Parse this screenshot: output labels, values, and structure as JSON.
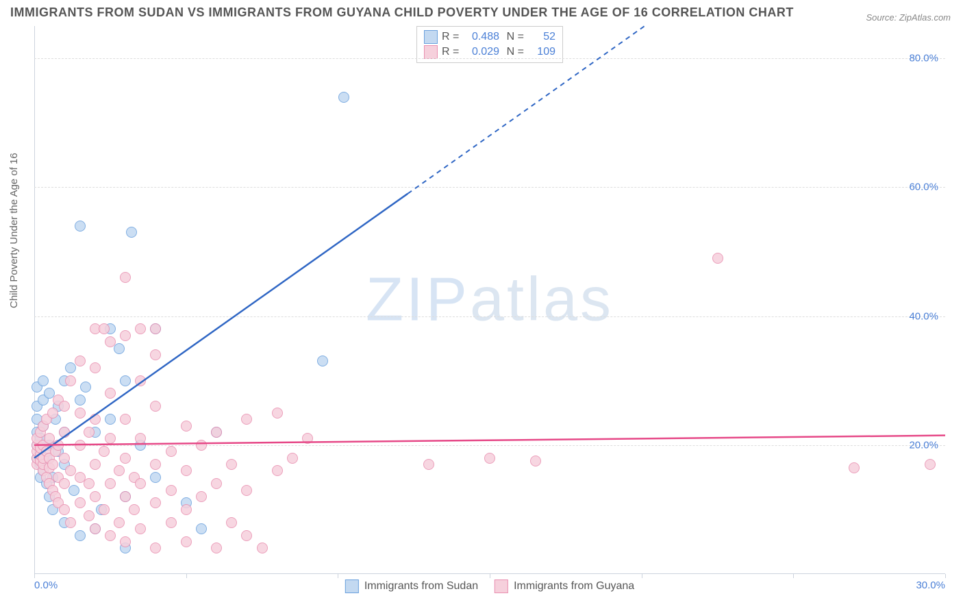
{
  "title": "IMMIGRANTS FROM SUDAN VS IMMIGRANTS FROM GUYANA CHILD POVERTY UNDER THE AGE OF 16 CORRELATION CHART",
  "source": "Source: ZipAtlas.com",
  "ylabel": "Child Poverty Under the Age of 16",
  "watermark": "ZIPatlas",
  "chart": {
    "type": "scatter",
    "xlim": [
      0,
      30
    ],
    "ylim": [
      0,
      85
    ],
    "yticks": [
      20,
      40,
      60,
      80
    ],
    "ytick_labels": [
      "20.0%",
      "40.0%",
      "60.0%",
      "80.0%"
    ],
    "xticks": [
      0,
      5,
      10,
      15,
      20,
      25,
      30
    ],
    "xtick_labeled": [
      0,
      30
    ],
    "xtick_labels": {
      "0": "0.0%",
      "30": "30.0%"
    },
    "background_color": "#ffffff",
    "grid_color": "#dddddd",
    "axis_color": "#ccd3dd",
    "tick_label_color": "#4a7fd6",
    "point_radius": 8,
    "point_border_width": 1.3,
    "series": [
      {
        "name": "Immigrants from Sudan",
        "fill": "#c3d9f1",
        "stroke": "#6aa0dd",
        "line_color": "#2f66c4",
        "r": "0.488",
        "n": "52",
        "trend": {
          "x1": 0,
          "y1": 18,
          "x2": 12.3,
          "y2": 59,
          "extend_to_x": 30,
          "extend_to_y": 118
        },
        "points": [
          [
            0.1,
            18
          ],
          [
            0.1,
            20
          ],
          [
            0.1,
            22
          ],
          [
            0.1,
            24
          ],
          [
            0.1,
            26
          ],
          [
            0.1,
            29
          ],
          [
            0.2,
            15
          ],
          [
            0.2,
            17
          ],
          [
            0.2,
            19
          ],
          [
            0.2,
            21
          ],
          [
            0.3,
            16
          ],
          [
            0.3,
            23
          ],
          [
            0.3,
            27
          ],
          [
            0.3,
            30
          ],
          [
            0.4,
            14
          ],
          [
            0.4,
            18
          ],
          [
            0.5,
            12
          ],
          [
            0.5,
            20
          ],
          [
            0.5,
            28
          ],
          [
            0.6,
            10
          ],
          [
            0.6,
            15
          ],
          [
            0.7,
            24
          ],
          [
            0.8,
            19
          ],
          [
            0.8,
            26
          ],
          [
            1.0,
            8
          ],
          [
            1.0,
            17
          ],
          [
            1.0,
            22
          ],
          [
            1.0,
            30
          ],
          [
            1.2,
            32
          ],
          [
            1.3,
            13
          ],
          [
            1.5,
            6
          ],
          [
            1.5,
            27
          ],
          [
            1.5,
            54
          ],
          [
            1.7,
            29
          ],
          [
            2.0,
            7
          ],
          [
            2.0,
            22
          ],
          [
            2.2,
            10
          ],
          [
            2.5,
            24
          ],
          [
            2.5,
            38
          ],
          [
            3.0,
            4
          ],
          [
            3.0,
            12
          ],
          [
            3.0,
            30
          ],
          [
            3.2,
            53
          ],
          [
            3.5,
            20
          ],
          [
            4.0,
            15
          ],
          [
            4.0,
            38
          ],
          [
            5.0,
            11
          ],
          [
            5.5,
            7
          ],
          [
            6.0,
            22
          ],
          [
            9.5,
            33
          ],
          [
            10.2,
            74
          ],
          [
            2.8,
            35
          ]
        ]
      },
      {
        "name": "Immigrants from Guyana",
        "fill": "#f6d0dc",
        "stroke": "#e98fb0",
        "line_color": "#e64887",
        "r": "0.029",
        "n": "109",
        "trend": {
          "x1": 0,
          "y1": 20,
          "x2": 30,
          "y2": 21.5,
          "extend_to_x": 30,
          "extend_to_y": 21.5
        },
        "points": [
          [
            0.1,
            17
          ],
          [
            0.1,
            18
          ],
          [
            0.1,
            19
          ],
          [
            0.1,
            20
          ],
          [
            0.1,
            21
          ],
          [
            0.2,
            17.5
          ],
          [
            0.2,
            18.5
          ],
          [
            0.2,
            19.5
          ],
          [
            0.2,
            22
          ],
          [
            0.3,
            16
          ],
          [
            0.3,
            17
          ],
          [
            0.3,
            18
          ],
          [
            0.3,
            20
          ],
          [
            0.3,
            23
          ],
          [
            0.4,
            15
          ],
          [
            0.4,
            19
          ],
          [
            0.4,
            24
          ],
          [
            0.5,
            14
          ],
          [
            0.5,
            16.5
          ],
          [
            0.5,
            18
          ],
          [
            0.5,
            21
          ],
          [
            0.6,
            13
          ],
          [
            0.6,
            17
          ],
          [
            0.6,
            25
          ],
          [
            0.7,
            12
          ],
          [
            0.7,
            19
          ],
          [
            0.8,
            11
          ],
          [
            0.8,
            15
          ],
          [
            0.8,
            20
          ],
          [
            0.8,
            27
          ],
          [
            1.0,
            10
          ],
          [
            1.0,
            14
          ],
          [
            1.0,
            18
          ],
          [
            1.0,
            22
          ],
          [
            1.0,
            26
          ],
          [
            1.2,
            8
          ],
          [
            1.2,
            16
          ],
          [
            1.2,
            30
          ],
          [
            1.5,
            11
          ],
          [
            1.5,
            15
          ],
          [
            1.5,
            20
          ],
          [
            1.5,
            25
          ],
          [
            1.5,
            33
          ],
          [
            1.8,
            9
          ],
          [
            1.8,
            14
          ],
          [
            1.8,
            22
          ],
          [
            2.0,
            7
          ],
          [
            2.0,
            12
          ],
          [
            2.0,
            17
          ],
          [
            2.0,
            24
          ],
          [
            2.0,
            32
          ],
          [
            2.0,
            38
          ],
          [
            2.3,
            10
          ],
          [
            2.3,
            19
          ],
          [
            2.5,
            6
          ],
          [
            2.5,
            14
          ],
          [
            2.5,
            21
          ],
          [
            2.5,
            28
          ],
          [
            2.5,
            36
          ],
          [
            2.8,
            8
          ],
          [
            2.8,
            16
          ],
          [
            3.0,
            5
          ],
          [
            3.0,
            12
          ],
          [
            3.0,
            18
          ],
          [
            3.0,
            24
          ],
          [
            3.0,
            37
          ],
          [
            3.0,
            46
          ],
          [
            3.3,
            10
          ],
          [
            3.3,
            15
          ],
          [
            3.5,
            7
          ],
          [
            3.5,
            14
          ],
          [
            3.5,
            21
          ],
          [
            3.5,
            30
          ],
          [
            4.0,
            4
          ],
          [
            4.0,
            11
          ],
          [
            4.0,
            17
          ],
          [
            4.0,
            26
          ],
          [
            4.0,
            34
          ],
          [
            4.5,
            8
          ],
          [
            4.5,
            13
          ],
          [
            4.5,
            19
          ],
          [
            5.0,
            5
          ],
          [
            5.0,
            10
          ],
          [
            5.0,
            16
          ],
          [
            5.0,
            23
          ],
          [
            5.5,
            12
          ],
          [
            5.5,
            20
          ],
          [
            6.0,
            4
          ],
          [
            6.0,
            14
          ],
          [
            6.0,
            22
          ],
          [
            6.5,
            8
          ],
          [
            6.5,
            17
          ],
          [
            7.0,
            6
          ],
          [
            7.0,
            13
          ],
          [
            7.0,
            24
          ],
          [
            7.5,
            4
          ],
          [
            8.0,
            16
          ],
          [
            8.0,
            25
          ],
          [
            8.5,
            18
          ],
          [
            9.0,
            21
          ],
          [
            13.0,
            17
          ],
          [
            15.0,
            18
          ],
          [
            16.5,
            17.5
          ],
          [
            22.5,
            49
          ],
          [
            27.0,
            16.5
          ],
          [
            29.5,
            17
          ],
          [
            4.0,
            38
          ],
          [
            2.3,
            38
          ],
          [
            3.5,
            38
          ]
        ]
      }
    ]
  },
  "legend_bottom_labels": {
    "series1": "Immigrants from Sudan",
    "series2": "Immigrants from Guyana"
  }
}
